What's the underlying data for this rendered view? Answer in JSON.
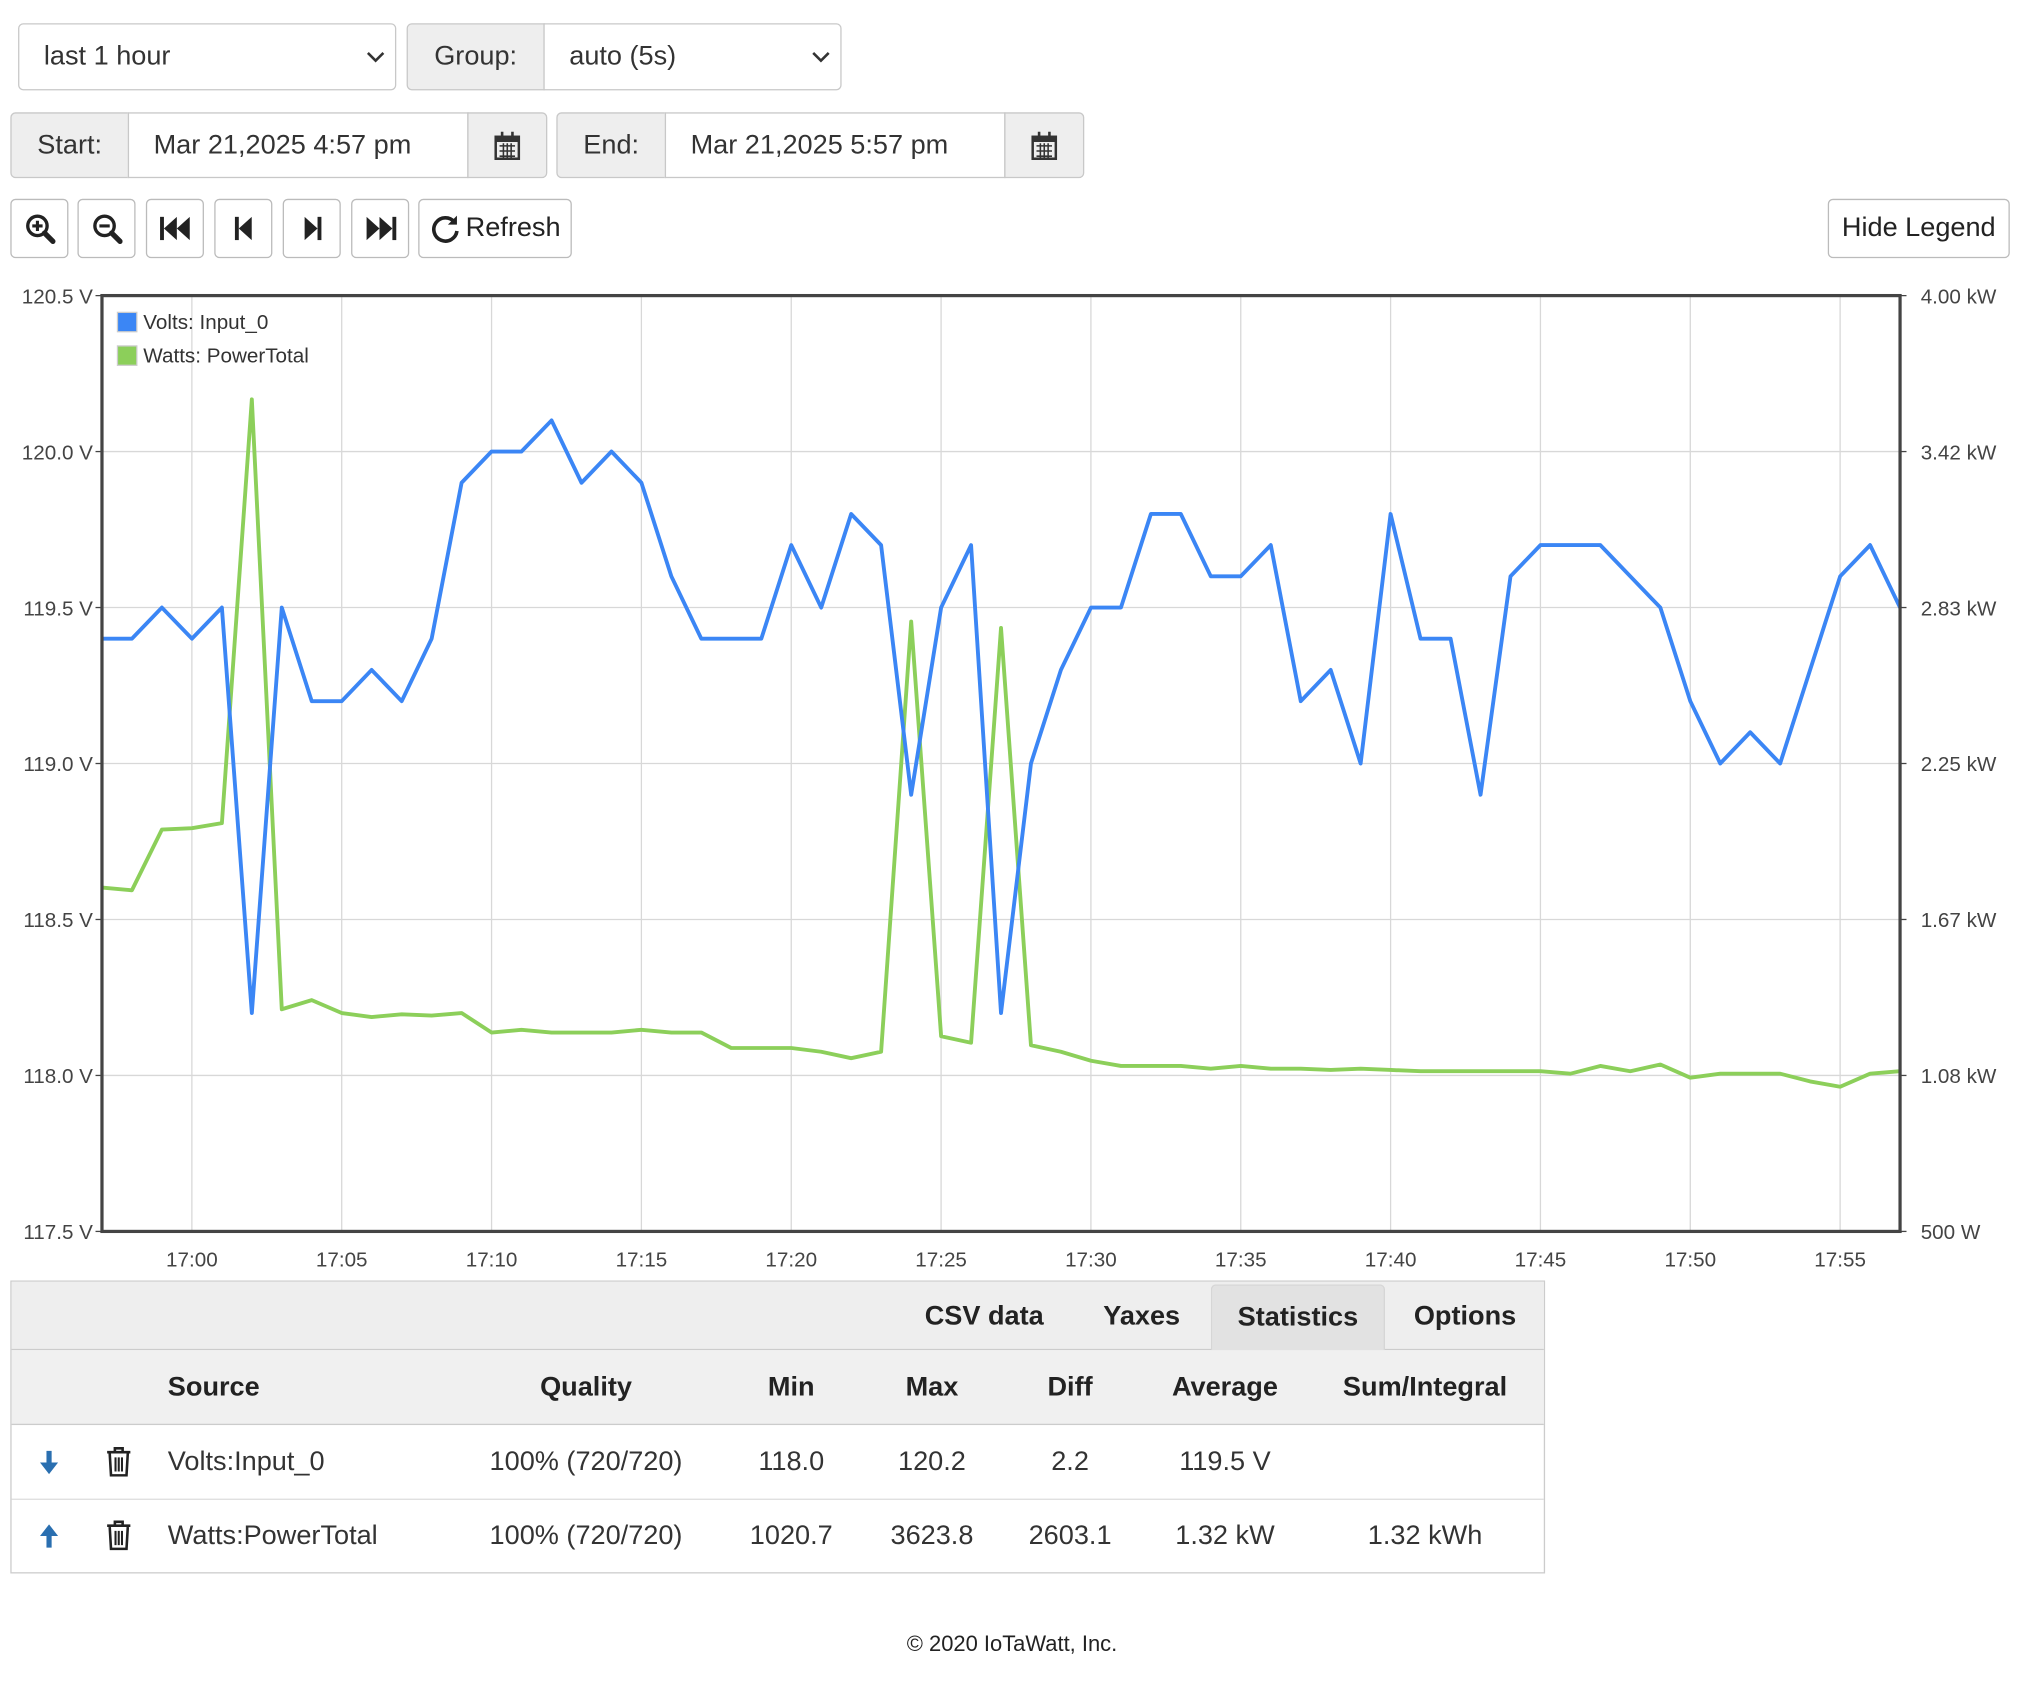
{
  "controls": {
    "range_select": "last 1 hour",
    "group_label": "Group:",
    "group_select": "auto (5s)",
    "start_label": "Start:",
    "start_value": "Mar 21,2025 4:57 pm",
    "end_label": "End:",
    "end_value": "Mar 21,2025 5:57 pm",
    "refresh": "Refresh",
    "legend_toggle": "Hide Legend"
  },
  "chart_data": {
    "type": "line",
    "x": [
      "16:57",
      "16:58",
      "16:59",
      "17:00",
      "17:01",
      "17:02",
      "17:03",
      "17:04",
      "17:05",
      "17:06",
      "17:07",
      "17:08",
      "17:09",
      "17:10",
      "17:11",
      "17:12",
      "17:13",
      "17:14",
      "17:15",
      "17:16",
      "17:17",
      "17:18",
      "17:19",
      "17:20",
      "17:21",
      "17:22",
      "17:23",
      "17:24",
      "17:25",
      "17:26",
      "17:27",
      "17:28",
      "17:29",
      "17:30",
      "17:31",
      "17:32",
      "17:33",
      "17:34",
      "17:35",
      "17:36",
      "17:37",
      "17:38",
      "17:39",
      "17:40",
      "17:41",
      "17:42",
      "17:43",
      "17:44",
      "17:45",
      "17:46",
      "17:47",
      "17:48",
      "17:49",
      "17:50",
      "17:51",
      "17:52",
      "17:53",
      "17:54",
      "17:55",
      "17:56",
      "17:57"
    ],
    "xlim": [
      "16:57",
      "17:57"
    ],
    "xticks": [
      "17:00",
      "17:05",
      "17:10",
      "17:15",
      "17:20",
      "17:25",
      "17:30",
      "17:35",
      "17:40",
      "17:45",
      "17:50",
      "17:55"
    ],
    "ylim": [
      117.5,
      120.5
    ],
    "yticks": [
      {
        "value": 117.5,
        "label": "117.5 V"
      },
      {
        "value": 118,
        "label": "118.0 V"
      },
      {
        "value": 118.5,
        "label": "118.5 V"
      },
      {
        "value": 119,
        "label": "119.0 V"
      },
      {
        "value": 119.5,
        "label": "119.5 V"
      },
      {
        "value": 120,
        "label": "120.0 V"
      },
      {
        "value": 120.5,
        "label": "120.5 V"
      }
    ],
    "y2lim": [
      500,
      4000
    ],
    "y2ticks": [
      {
        "value": 500,
        "label": "500 W"
      },
      {
        "value": 1083.33,
        "label": "1.08 kW"
      },
      {
        "value": 1666.67,
        "label": "1.67 kW"
      },
      {
        "value": 2250,
        "label": "2.25 kW"
      },
      {
        "value": 2833.33,
        "label": "2.83 kW"
      },
      {
        "value": 3416.67,
        "label": "3.42 kW"
      },
      {
        "value": 4000,
        "label": "4.00 kW"
      }
    ],
    "grid": true,
    "legend": "top-left",
    "series": [
      {
        "name": "Volts: Input_0",
        "color": "#3b86f5",
        "values": [
          119.4,
          119.4,
          119.5,
          119.4,
          119.5,
          118.2,
          119.5,
          119.2,
          119.2,
          119.3,
          119.2,
          119.4,
          119.9,
          120.0,
          120.0,
          120.1,
          119.9,
          120.0,
          119.9,
          119.6,
          119.4,
          119.4,
          119.4,
          119.7,
          119.5,
          119.8,
          119.7,
          118.9,
          119.5,
          119.7,
          118.2,
          119.0,
          119.3,
          119.5,
          119.5,
          119.8,
          119.8,
          119.6,
          119.6,
          119.7,
          119.2,
          119.3,
          119.0,
          119.8,
          119.4,
          119.4,
          118.9,
          119.6,
          119.7,
          119.7,
          119.7,
          119.6,
          119.5,
          119.2,
          119.0,
          119.1,
          119.0,
          119.3,
          119.6,
          119.7,
          119.5
        ]
      },
      {
        "name": "Watts: PowerTotal",
        "color": "#8ccf5a",
        "axis": "y2",
        "values": [
          1786,
          1776,
          2003,
          2008,
          2027,
          3612,
          1331,
          1365,
          1317,
          1302,
          1312,
          1307,
          1317,
          1244,
          1254,
          1244,
          1244,
          1244,
          1254,
          1244,
          1244,
          1186,
          1186,
          1186,
          1172,
          1148,
          1172,
          2781,
          1230,
          1206,
          2757,
          1196,
          1172,
          1138,
          1119,
          1119,
          1119,
          1109,
          1119,
          1109,
          1109,
          1104,
          1109,
          1104,
          1099,
          1099,
          1099,
          1099,
          1099,
          1090,
          1119,
          1099,
          1124,
          1075,
          1090,
          1090,
          1090,
          1061,
          1041,
          1090,
          1099
        ]
      }
    ]
  },
  "tabs": [
    "CSV data",
    "Yaxes",
    "Statistics",
    "Options"
  ],
  "active_tab": 2,
  "table": {
    "header": [
      "Source",
      "Quality",
      "Min",
      "Max",
      "Diff",
      "Average",
      "Sum/Integral"
    ],
    "rows": [
      [
        "Volts:Input_0",
        "100% (720/720)",
        "118.0",
        "120.2",
        "2.2",
        "119.5 V"
      ],
      [
        "Watts:PowerTotal",
        "100% (720/720)",
        "1020.7",
        "3623.8",
        "2603.1",
        "1.32 kW",
        "1.32 kWh"
      ]
    ]
  },
  "footer": "© 2020 IoTaWatt, Inc."
}
